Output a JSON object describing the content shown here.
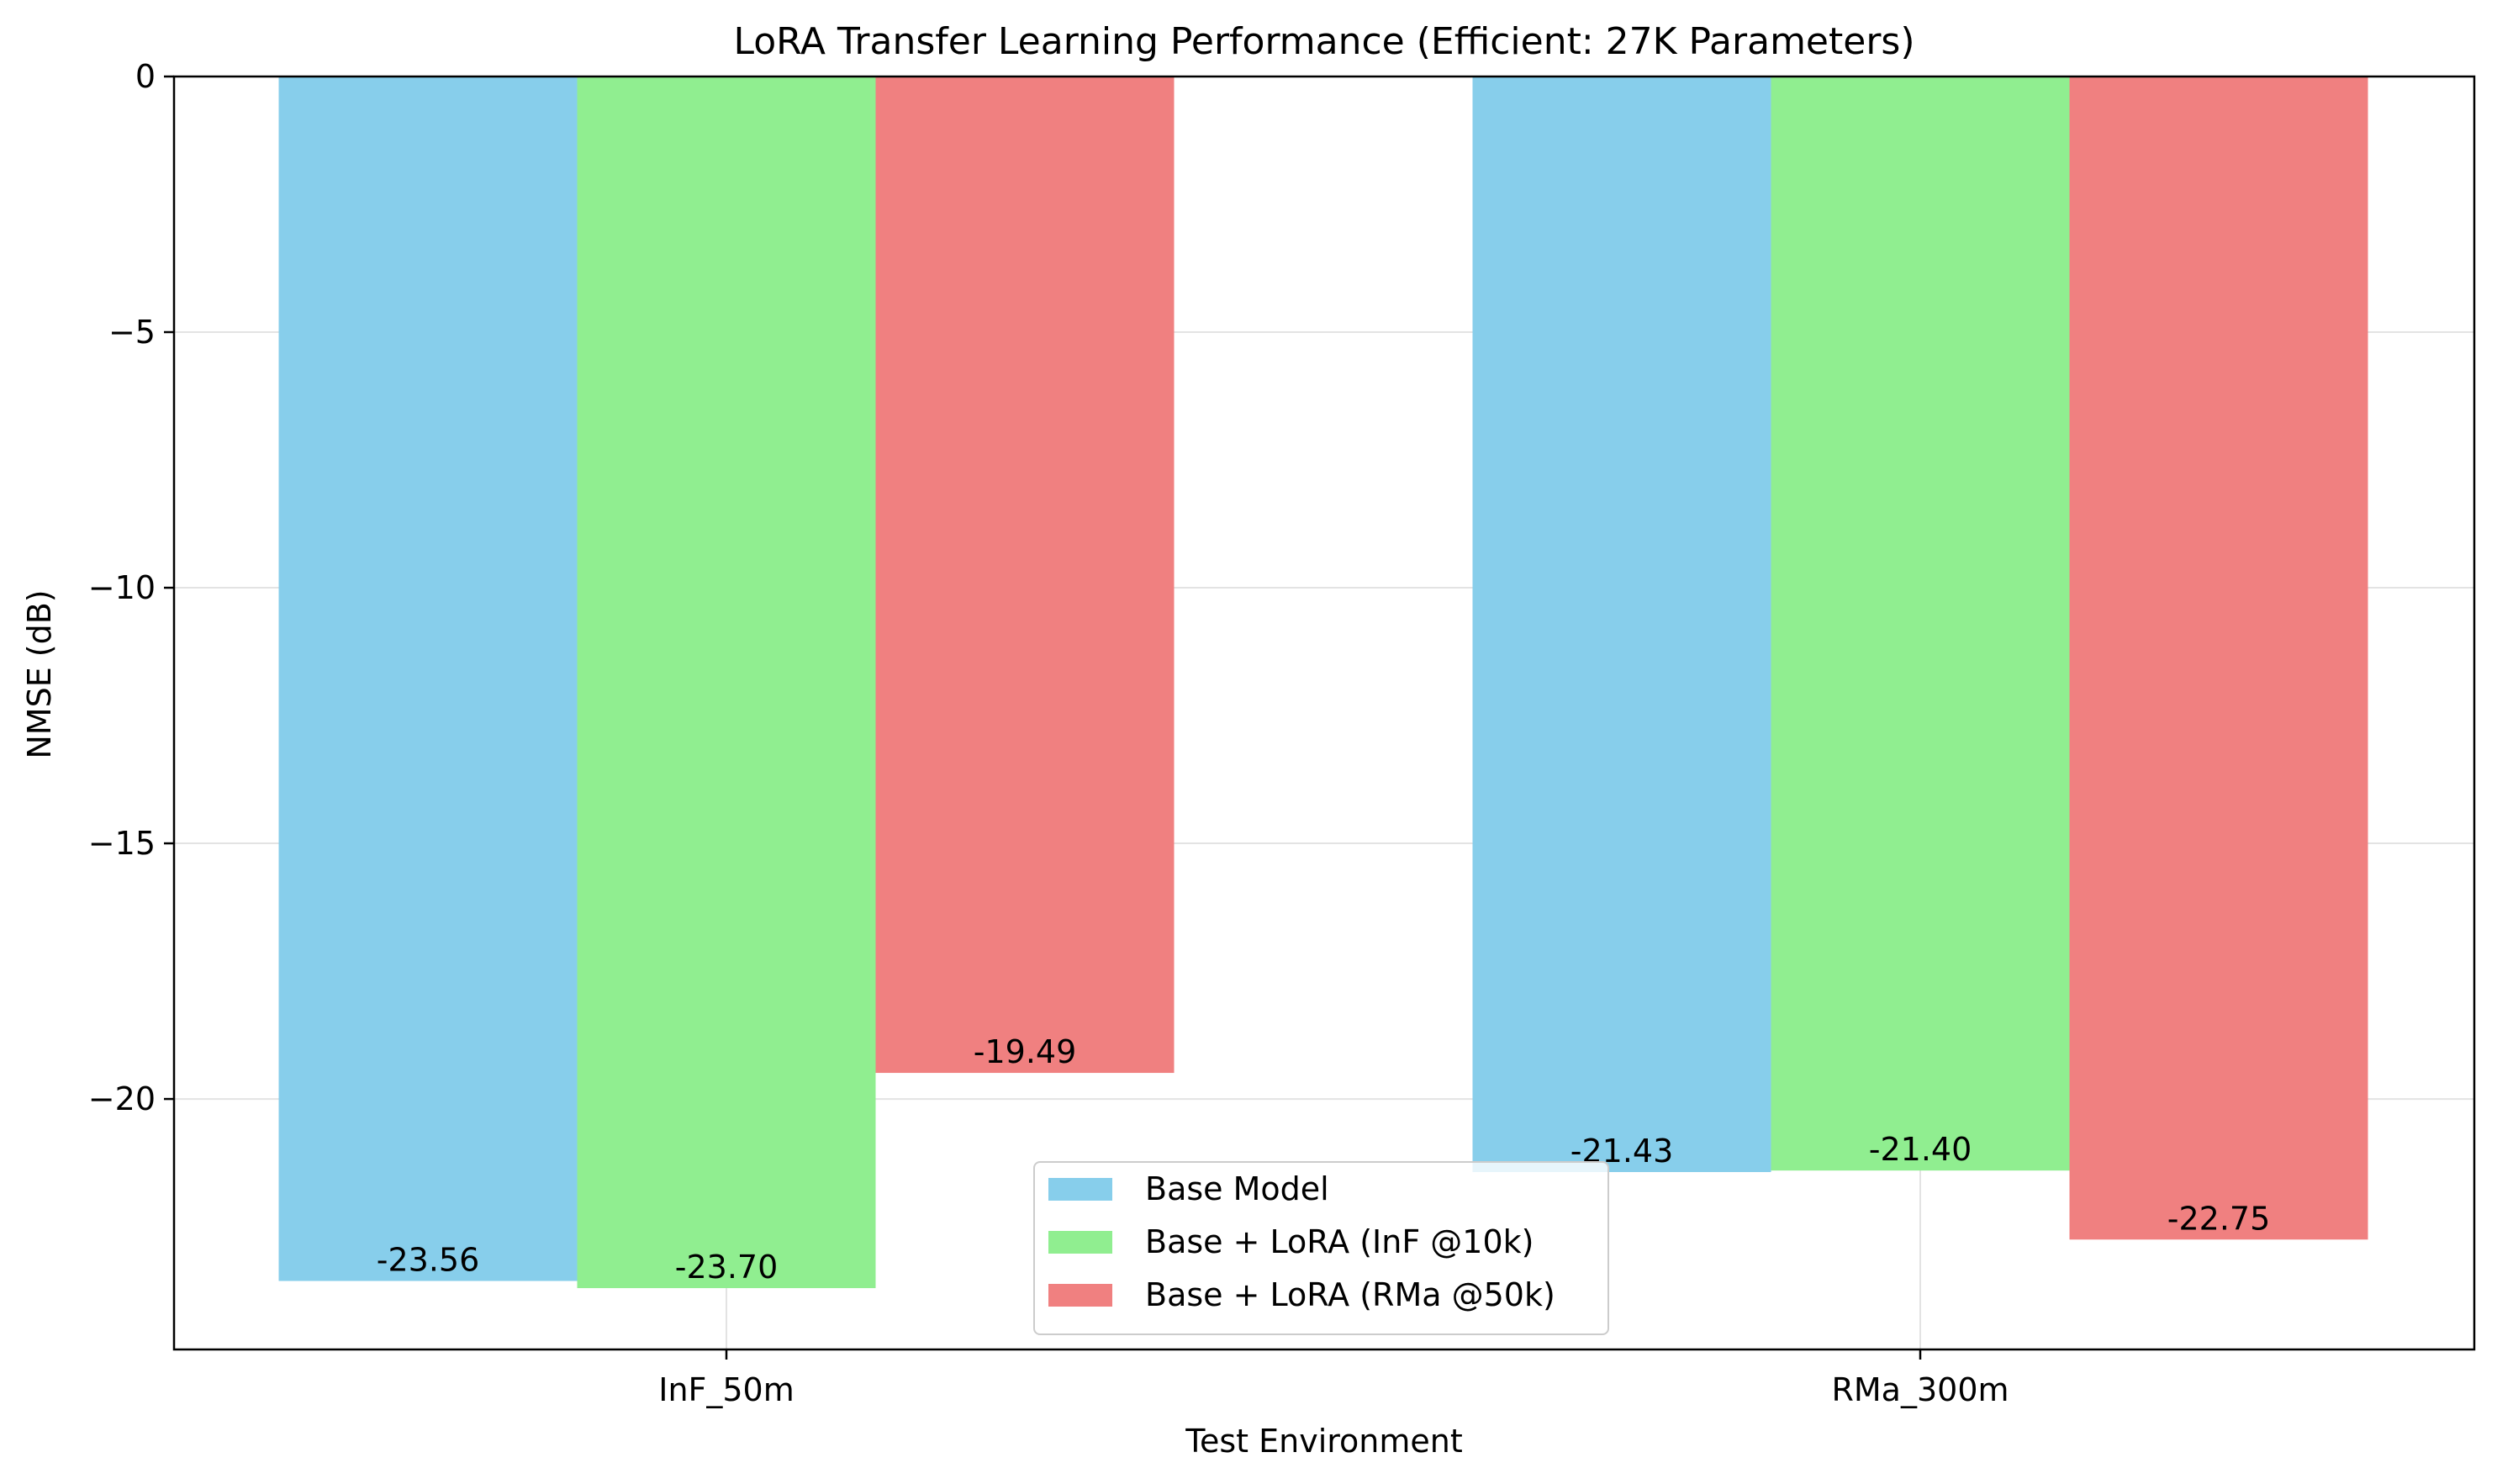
{
  "chart_data": {
    "type": "bar",
    "title": "LoRA Transfer Learning Performance (Efficient: 27K Parameters)",
    "xlabel": "Test Environment",
    "ylabel": "NMSE (dB)",
    "categories": [
      "InF_50m",
      "RMa_300m"
    ],
    "ylim": [
      -24.9,
      0
    ],
    "yticks": [
      0,
      -5,
      -10,
      -15,
      -20
    ],
    "ytick_labels": [
      "0",
      "−5",
      "−10",
      "−15",
      "−20"
    ],
    "grid": true,
    "legend_position": "lower center",
    "series": [
      {
        "name": "Base Model",
        "color": "#87CEEB",
        "values": [
          -23.56,
          -21.43
        ],
        "labels": [
          "-23.56",
          "-21.43"
        ]
      },
      {
        "name": "Base + LoRA (InF @10k)",
        "color": "#90EE90",
        "values": [
          -23.7,
          -21.4
        ],
        "labels": [
          "-23.70",
          "-21.40"
        ]
      },
      {
        "name": "Base + LoRA (RMa @50k)",
        "color": "#F08080",
        "values": [
          -19.49,
          -22.75
        ],
        "labels": [
          "-19.49",
          "-22.75"
        ]
      }
    ]
  }
}
